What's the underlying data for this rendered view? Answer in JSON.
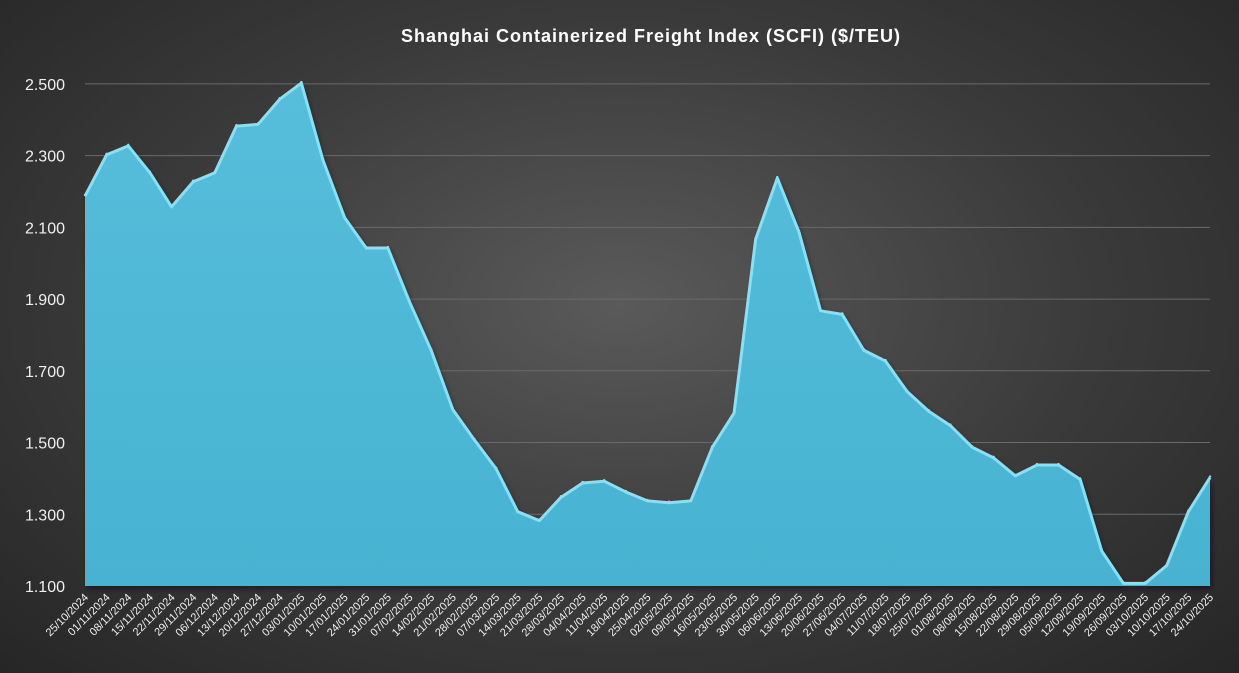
{
  "chart_data": {
    "type": "area",
    "title": "Shanghai Containerized Freight Index (SCFI) ($/TEU)",
    "xlabel": "",
    "ylabel": "",
    "ylim": [
      1100,
      2600
    ],
    "yticks": [
      1100,
      1300,
      1500,
      1700,
      1900,
      2100,
      2300,
      2500
    ],
    "ytick_labels": [
      "1.100",
      "1.300",
      "1.500",
      "1.700",
      "1.900",
      "2.100",
      "2.300",
      "2.500"
    ],
    "grid": true,
    "legend": "none",
    "colors": {
      "fill": "#4fb8d6",
      "edge": "#86e0f6",
      "background": "#3c3c3c",
      "grid": "#6a6a6a",
      "text": "#ffffff"
    },
    "x_labels": [
      "25/10/2024",
      "01/11/2024",
      "08/11/2024",
      "15/11/2024",
      "22/11/2024",
      "29/11/2024",
      "06/12/2024",
      "13/12/2024",
      "20/12/2024",
      "27/12/2024",
      "03/01/2025",
      "10/01/2025",
      "17/01/2025",
      "24/01/2025",
      "31/01/2025",
      "07/02/2025",
      "14/02/2025",
      "21/02/2025",
      "28/02/2025",
      "07/03/2025",
      "14/03/2025",
      "21/03/2025",
      "28/03/2025",
      "04/04/2025",
      "11/04/2025",
      "18/04/2025",
      "25/04/2025",
      "02/05/2025",
      "09/05/2025",
      "16/05/2025",
      "23/05/2025",
      "30/05/2025",
      "06/06/2025",
      "13/06/2025",
      "20/06/2025",
      "27/06/2025",
      "04/07/2025",
      "11/07/2025",
      "18/07/2025",
      "25/07/2025",
      "01/08/2025",
      "08/08/2025",
      "15/08/2025",
      "22/08/2025",
      "29/08/2025",
      "05/09/2025",
      "12/09/2025",
      "19/09/2025",
      "26/09/2025",
      "03/10/2025",
      "10/10/2025",
      "17/10/2025",
      "24/10/2025"
    ],
    "series": [
      {
        "values": [
          2190,
          2305,
          2330,
          2255,
          2160,
          2230,
          2255,
          2385,
          2390,
          2460,
          2505,
          2290,
          2130,
          2045,
          2045,
          1895,
          1760,
          1595,
          1510,
          1430,
          1310,
          1285,
          1350,
          1390,
          1395,
          1365,
          1340,
          1335,
          1340,
          1490,
          1585,
          2070,
          2240,
          2090,
          1870,
          1860,
          1760,
          1730,
          1645,
          1590,
          1550,
          1490,
          1460,
          1410,
          1440,
          1440,
          1400,
          1200,
          1110,
          1110,
          1160,
          1310,
          1405
        ]
      }
    ]
  }
}
